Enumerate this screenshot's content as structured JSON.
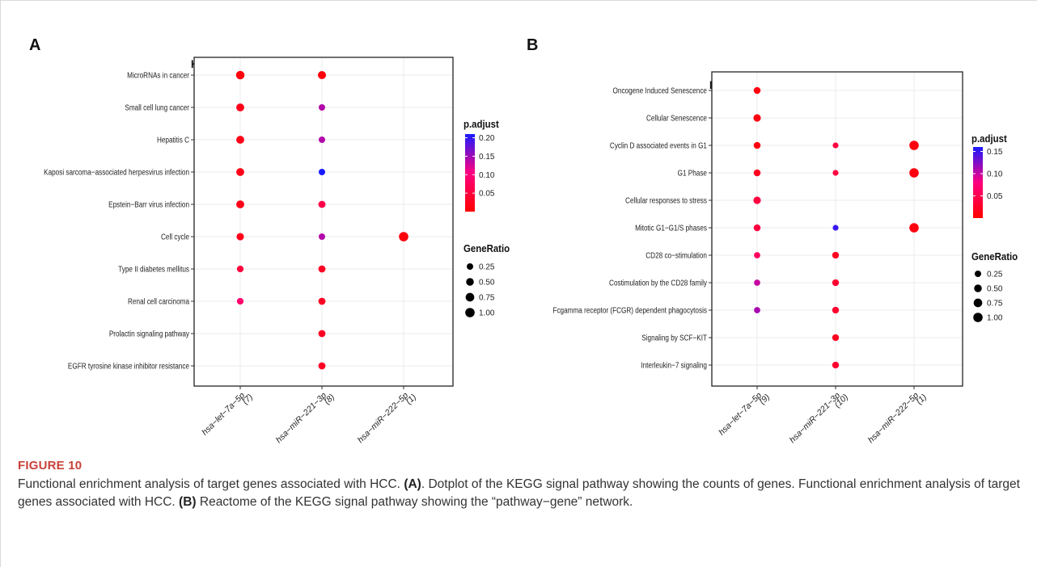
{
  "panels": [
    {
      "letter": "A",
      "chart_data": {
        "type": "scatter",
        "title": "KEGG",
        "xlabel": "",
        "ylabel": "",
        "categories": [
          "hsa−let−7a−5p",
          "hsa−miR−221−3p",
          "hsa−miR−222−5p"
        ],
        "category_counts": [
          "(7)",
          "(8)",
          "(1)"
        ],
        "y_categories": [
          "MicroRNAs in cancer",
          "Small cell lung cancer",
          "Hepatitis C",
          "Kaposi sarcoma−associated herpesvirus infection",
          "Epstein−Barr virus infection",
          "Cell cycle",
          "Type II diabetes mellitus",
          "Renal cell carcinoma",
          "Prolactin signaling pathway",
          "EGFR tyrosine kinase inhibitor resistance"
        ],
        "points": [
          {
            "x": 0,
            "y": 0,
            "gene_ratio": 0.71,
            "p_adjust": 0.01
          },
          {
            "x": 0,
            "y": 1,
            "gene_ratio": 0.57,
            "p_adjust": 0.02
          },
          {
            "x": 0,
            "y": 2,
            "gene_ratio": 0.57,
            "p_adjust": 0.02
          },
          {
            "x": 0,
            "y": 3,
            "gene_ratio": 0.57,
            "p_adjust": 0.02
          },
          {
            "x": 0,
            "y": 4,
            "gene_ratio": 0.57,
            "p_adjust": 0.02
          },
          {
            "x": 0,
            "y": 5,
            "gene_ratio": 0.43,
            "p_adjust": 0.02
          },
          {
            "x": 0,
            "y": 6,
            "gene_ratio": 0.29,
            "p_adjust": 0.05
          },
          {
            "x": 0,
            "y": 7,
            "gene_ratio": 0.29,
            "p_adjust": 0.09
          },
          {
            "x": 1,
            "y": 0,
            "gene_ratio": 0.62,
            "p_adjust": 0.01
          },
          {
            "x": 1,
            "y": 1,
            "gene_ratio": 0.25,
            "p_adjust": 0.14
          },
          {
            "x": 1,
            "y": 2,
            "gene_ratio": 0.25,
            "p_adjust": 0.14
          },
          {
            "x": 1,
            "y": 3,
            "gene_ratio": 0.25,
            "p_adjust": 0.21
          },
          {
            "x": 1,
            "y": 4,
            "gene_ratio": 0.38,
            "p_adjust": 0.06
          },
          {
            "x": 1,
            "y": 5,
            "gene_ratio": 0.25,
            "p_adjust": 0.14
          },
          {
            "x": 1,
            "y": 6,
            "gene_ratio": 0.38,
            "p_adjust": 0.03
          },
          {
            "x": 1,
            "y": 7,
            "gene_ratio": 0.38,
            "p_adjust": 0.03
          },
          {
            "x": 1,
            "y": 8,
            "gene_ratio": 0.38,
            "p_adjust": 0.03
          },
          {
            "x": 1,
            "y": 9,
            "gene_ratio": 0.38,
            "p_adjust": 0.03
          },
          {
            "x": 2,
            "y": 5,
            "gene_ratio": 1.0,
            "p_adjust": 0.01
          }
        ],
        "p_adjust_legend": {
          "title": "p.adjust",
          "ticks": [
            0.2,
            0.15,
            0.1,
            0.05
          ],
          "tick_labels": [
            "0.20",
            "0.15",
            "0.10",
            "0.05"
          ],
          "range": [
            0.0,
            0.21
          ]
        },
        "gene_ratio_legend": {
          "title": "GeneRatio",
          "values": [
            0.25,
            0.5,
            0.75,
            1.0
          ],
          "labels": [
            "0.25",
            "0.50",
            "0.75",
            "1.00"
          ]
        },
        "grid": true,
        "legend_position": "right"
      }
    },
    {
      "letter": "B",
      "chart_data": {
        "type": "scatter",
        "title": "Reactome",
        "xlabel": "",
        "ylabel": "",
        "categories": [
          "hsa−let−7a−5p",
          "hsa−miR−221−3p",
          "hsa−miR−222−5p"
        ],
        "category_counts": [
          "(9)",
          "(10)",
          "(1)"
        ],
        "y_categories": [
          "Oncogene Induced Senescence",
          "Cellular Senescence",
          "Cyclin D associated events in G1",
          "G1 Phase",
          "Cellular responses to stress",
          "Mitotic G1−G1/S phases",
          "CD28 co−stimulation",
          "Costimulation by the CD28 family",
          "Fcgamma receptor (FCGR) dependent phagocytosis",
          "Signaling by SCF−KIT",
          "Interleukin−7 signaling"
        ],
        "points": [
          {
            "x": 0,
            "y": 0,
            "gene_ratio": 0.33,
            "p_adjust": 0.01
          },
          {
            "x": 0,
            "y": 1,
            "gene_ratio": 0.44,
            "p_adjust": 0.01
          },
          {
            "x": 0,
            "y": 2,
            "gene_ratio": 0.33,
            "p_adjust": 0.01
          },
          {
            "x": 0,
            "y": 3,
            "gene_ratio": 0.33,
            "p_adjust": 0.02
          },
          {
            "x": 0,
            "y": 4,
            "gene_ratio": 0.44,
            "p_adjust": 0.04
          },
          {
            "x": 0,
            "y": 5,
            "gene_ratio": 0.33,
            "p_adjust": 0.04
          },
          {
            "x": 0,
            "y": 6,
            "gene_ratio": 0.22,
            "p_adjust": 0.06
          },
          {
            "x": 0,
            "y": 7,
            "gene_ratio": 0.22,
            "p_adjust": 0.1
          },
          {
            "x": 0,
            "y": 8,
            "gene_ratio": 0.22,
            "p_adjust": 0.11
          },
          {
            "x": 1,
            "y": 2,
            "gene_ratio": 0.15,
            "p_adjust": 0.04
          },
          {
            "x": 1,
            "y": 3,
            "gene_ratio": 0.15,
            "p_adjust": 0.04
          },
          {
            "x": 1,
            "y": 5,
            "gene_ratio": 0.15,
            "p_adjust": 0.15
          },
          {
            "x": 1,
            "y": 6,
            "gene_ratio": 0.3,
            "p_adjust": 0.02
          },
          {
            "x": 1,
            "y": 7,
            "gene_ratio": 0.3,
            "p_adjust": 0.03
          },
          {
            "x": 1,
            "y": 8,
            "gene_ratio": 0.3,
            "p_adjust": 0.03
          },
          {
            "x": 1,
            "y": 9,
            "gene_ratio": 0.3,
            "p_adjust": 0.02
          },
          {
            "x": 1,
            "y": 10,
            "gene_ratio": 0.3,
            "p_adjust": 0.03
          },
          {
            "x": 2,
            "y": 2,
            "gene_ratio": 1.0,
            "p_adjust": 0.01
          },
          {
            "x": 2,
            "y": 3,
            "gene_ratio": 1.0,
            "p_adjust": 0.01
          },
          {
            "x": 2,
            "y": 5,
            "gene_ratio": 1.0,
            "p_adjust": 0.01
          }
        ],
        "p_adjust_legend": {
          "title": "p.adjust",
          "ticks": [
            0.15,
            0.1,
            0.05
          ],
          "tick_labels": [
            "0.15",
            "0.10",
            "0.05"
          ],
          "range": [
            0.0,
            0.16
          ]
        },
        "gene_ratio_legend": {
          "title": "GeneRatio",
          "values": [
            0.25,
            0.5,
            0.75,
            1.0
          ],
          "labels": [
            "0.25",
            "0.50",
            "0.75",
            "1.00"
          ]
        },
        "grid": true,
        "legend_position": "right"
      }
    }
  ],
  "colors": {
    "low_p": "#ff0000",
    "mid_p": "#ff0080",
    "high_p": "#1a1aff"
  },
  "caption": {
    "label": "FIGURE 10",
    "line1_text": "Functional enrichment analysis of target genes associated with HCC.",
    "line1_bold": "(A)",
    "line2_text": ". Dotplot of the KEGG signal pathway showing the counts of genes. Functional enrichment analysis of target genes associated with HCC.",
    "line3_bold": "(B)",
    "line3_text": "Reactome of the KEGG signal pathway showing the “pathway−gene” network."
  }
}
